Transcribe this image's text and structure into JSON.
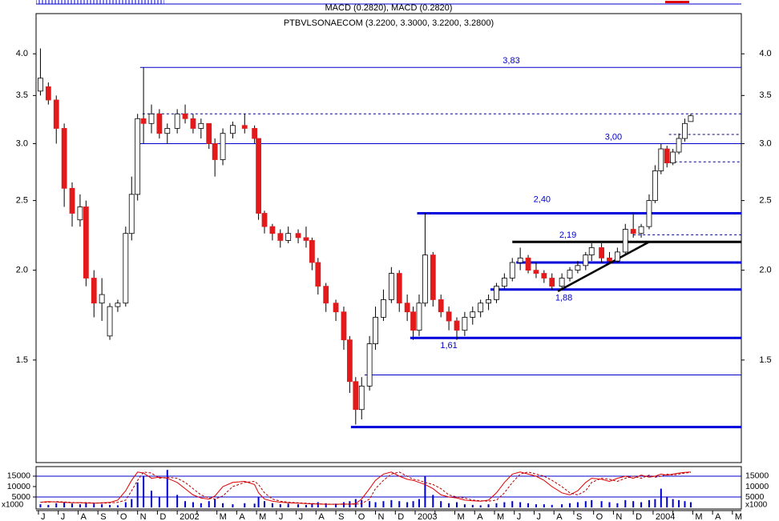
{
  "chart_data": {
    "type": "candlestick",
    "indicator_label": "MACD (0.2820), MACD (0.2820)",
    "title": "PTBVLSONAECOM (3.2200, 3.3000, 3.2200, 3.2800)",
    "log_scale": true,
    "up_color": "#ffffff",
    "down_color": "#e31a1c",
    "categories": [
      "J",
      "J",
      "A",
      "S",
      "O",
      "N",
      "D",
      "2002",
      null,
      "M",
      "A",
      "M",
      "J",
      "J",
      "A",
      "S",
      "O",
      "N",
      "D",
      "2003",
      null,
      "M",
      "A",
      "M",
      "J",
      "J",
      "A",
      "S",
      "O",
      "N",
      "D",
      "2004",
      null,
      "M",
      "A",
      "M"
    ],
    "xlim": [
      -0.12,
      35.45
    ],
    "x": [
      0.1,
      0.5,
      0.9,
      1.3,
      1.7,
      2.1,
      2.4,
      2.8,
      3.2,
      3.6,
      4.0,
      4.4,
      4.7,
      5.0,
      5.3,
      5.7,
      6.1,
      6.5,
      7.0,
      7.4,
      7.8,
      8.2,
      8.6,
      8.9,
      9.3,
      9.8,
      10.4,
      10.9,
      11.1,
      11.4,
      11.8,
      12.2,
      12.6,
      13.1,
      13.5,
      13.8,
      14.1,
      14.5,
      15.0,
      15.4,
      15.7,
      16.0,
      16.3,
      16.7,
      17.0,
      17.4,
      17.8,
      18.2,
      18.6,
      18.9,
      19.2,
      19.5,
      19.9,
      20.3,
      20.7,
      21.1,
      21.5,
      21.9,
      22.3,
      22.7,
      23.1,
      23.5,
      23.9,
      24.3,
      24.7,
      25.1,
      25.5,
      25.9,
      26.4,
      26.8,
      27.2,
      27.6,
      27.9,
      28.4,
      28.8,
      29.2,
      29.6,
      30.0,
      30.4,
      30.8,
      31.1,
      31.4,
      31.7,
      32.0,
      32.3,
      32.6,
      32.9
    ],
    "open": [
      3.55,
      3.6,
      3.45,
      3.15,
      2.6,
      2.35,
      2.45,
      1.95,
      1.8,
      1.62,
      1.78,
      1.8,
      2.25,
      2.55,
      3.25,
      3.2,
      3.3,
      3.1,
      3.15,
      3.3,
      3.25,
      3.15,
      3.2,
      3.0,
      2.85,
      3.1,
      3.18,
      3.15,
      3.05,
      2.4,
      2.3,
      2.25,
      2.2,
      2.25,
      2.22,
      2.2,
      2.05,
      1.9,
      1.8,
      1.75,
      1.6,
      1.4,
      1.28,
      1.38,
      1.58,
      1.72,
      1.82,
      1.98,
      1.8,
      1.75,
      1.65,
      1.8,
      2.1,
      1.82,
      1.75,
      1.7,
      1.65,
      1.72,
      1.75,
      1.8,
      1.82,
      1.9,
      1.95,
      2.05,
      2.08,
      2.0,
      1.98,
      1.95,
      1.9,
      1.95,
      2.0,
      2.03,
      2.1,
      2.15,
      2.08,
      2.06,
      2.12,
      2.28,
      2.25,
      2.3,
      2.5,
      2.75,
      2.95,
      2.82,
      2.92,
      3.05,
      3.22
    ],
    "high": [
      4.07,
      3.65,
      3.5,
      3.2,
      2.65,
      2.55,
      2.5,
      2.0,
      1.95,
      1.8,
      1.82,
      2.3,
      2.7,
      3.3,
      3.83,
      3.4,
      3.35,
      3.2,
      3.35,
      3.4,
      3.3,
      3.25,
      3.2,
      3.05,
      3.15,
      3.22,
      3.3,
      3.18,
      3.05,
      2.42,
      2.32,
      2.28,
      2.3,
      2.28,
      2.3,
      2.22,
      2.08,
      1.92,
      1.82,
      1.78,
      1.62,
      1.42,
      1.42,
      1.62,
      1.78,
      1.88,
      2.02,
      2.0,
      1.85,
      1.78,
      1.85,
      2.4,
      2.12,
      1.85,
      1.78,
      1.72,
      1.75,
      1.78,
      1.82,
      1.85,
      1.92,
      1.98,
      2.08,
      2.15,
      2.1,
      2.05,
      2.0,
      1.98,
      1.98,
      2.02,
      2.06,
      2.12,
      2.18,
      2.18,
      2.12,
      2.15,
      2.32,
      2.4,
      2.32,
      2.55,
      2.8,
      3.0,
      2.98,
      2.95,
      3.1,
      3.25,
      3.3
    ],
    "low": [
      3.5,
      3.4,
      3.0,
      2.45,
      2.3,
      2.3,
      1.9,
      1.72,
      1.7,
      1.6,
      1.75,
      1.78,
      2.2,
      2.5,
      3.0,
      3.1,
      3.05,
      3.0,
      3.1,
      3.2,
      3.1,
      3.05,
      2.95,
      2.7,
      2.8,
      3.05,
      3.1,
      3.0,
      2.35,
      2.25,
      2.2,
      2.15,
      2.18,
      2.18,
      2.15,
      2.0,
      1.85,
      1.75,
      1.7,
      1.55,
      1.35,
      1.22,
      1.24,
      1.36,
      1.55,
      1.7,
      1.8,
      1.75,
      1.7,
      1.6,
      1.62,
      1.78,
      1.78,
      1.72,
      1.65,
      1.6,
      1.62,
      1.68,
      1.72,
      1.76,
      1.8,
      1.88,
      1.93,
      2.0,
      1.98,
      1.95,
      1.92,
      1.88,
      1.88,
      1.93,
      1.98,
      2.0,
      2.06,
      2.05,
      2.04,
      2.05,
      2.1,
      2.22,
      2.22,
      2.28,
      2.48,
      2.72,
      2.78,
      2.8,
      2.9,
      3.02,
      3.22
    ],
    "close": [
      3.7,
      3.45,
      3.15,
      2.6,
      2.4,
      2.45,
      1.95,
      1.8,
      1.85,
      1.78,
      1.8,
      2.25,
      2.55,
      3.25,
      3.2,
      3.3,
      3.1,
      3.15,
      3.3,
      3.25,
      3.15,
      3.2,
      3.0,
      2.85,
      3.1,
      3.18,
      3.15,
      3.05,
      2.4,
      2.3,
      2.25,
      2.2,
      2.25,
      2.22,
      2.2,
      2.05,
      1.9,
      1.8,
      1.75,
      1.6,
      1.4,
      1.28,
      1.38,
      1.58,
      1.72,
      1.82,
      1.98,
      1.8,
      1.75,
      1.65,
      1.8,
      2.1,
      1.82,
      1.75,
      1.7,
      1.65,
      1.72,
      1.75,
      1.8,
      1.82,
      1.9,
      1.95,
      2.05,
      2.08,
      2.0,
      1.98,
      1.95,
      1.9,
      1.95,
      2.0,
      2.03,
      2.1,
      2.15,
      2.08,
      2.06,
      2.12,
      2.28,
      2.25,
      2.3,
      2.5,
      2.75,
      2.95,
      2.82,
      2.92,
      3.05,
      3.2,
      3.28
    ],
    "ylim": [
      1.08,
      4.55
    ],
    "yticks": [
      1.5,
      {
        "value": 2,
        "label": "2.0"
      },
      2.5,
      {
        "value": 3,
        "label": "3.0"
      },
      3.5,
      {
        "value": 4,
        "label": "4.0"
      }
    ],
    "levels": [
      {
        "value": 3.83,
        "label": "3,83",
        "start": 5.13,
        "style": "thin",
        "color": "#0000cc"
      },
      {
        "value": 3.3,
        "start": 5.25,
        "style": "dashed",
        "color": "#000080"
      },
      {
        "value": 3.0,
        "label": "3,00",
        "start": 5.13,
        "style": "thin",
        "color": "#0000cc"
      },
      {
        "value": 3.09,
        "start": 31.8,
        "style": "dashed",
        "color": "#000080"
      },
      {
        "value": 2.83,
        "start": 31.6,
        "style": "dashed",
        "color": "#000080"
      },
      {
        "value": 2.4,
        "label": "2,40",
        "start": 19.1,
        "style": "thick",
        "color": "#0000dd"
      },
      {
        "value": 2.24,
        "start": 30.0,
        "style": "dashed",
        "color": "#000080"
      },
      {
        "value": 2.19,
        "label": "2,19",
        "start": 23.9,
        "style": "thick",
        "color": "#000000"
      },
      {
        "value": 2.05,
        "start": 24.1,
        "style": "thick",
        "color": "#0000dd"
      },
      {
        "value": 1.88,
        "label": "1,88",
        "start": 22.8,
        "style": "thick",
        "color": "#0000dd"
      },
      {
        "value": 1.61,
        "label": "1,61",
        "start": 18.75,
        "style": "thick",
        "color": "#0000dd"
      },
      {
        "value": 1.43,
        "start": 16.45,
        "style": "thin",
        "color": "#0000cc"
      },
      {
        "value": 1.21,
        "start": 15.76,
        "style": "thick",
        "color": "#0000dd"
      }
    ],
    "trendline": {
      "x": [
        26.2,
        30.8
      ],
      "values": [
        1.87,
        2.19
      ],
      "color": "#000000"
    },
    "volume": {
      "unit_label": "x1000",
      "color": "#0000cc",
      "ylim": [
        -770,
        19600
      ],
      "yticks": [
        5000,
        10000,
        15000
      ],
      "lines": [
        5000,
        15000
      ],
      "values": [
        1500,
        1200,
        2000,
        2500,
        1800,
        1500,
        2200,
        1800,
        1500,
        1200,
        1000,
        2500,
        4000,
        12000,
        15000,
        8000,
        5000,
        18000,
        6000,
        3000,
        2500,
        2000,
        3000,
        4000,
        2000,
        1500,
        2000,
        1800,
        5000,
        3000,
        2000,
        1500,
        1800,
        1500,
        1200,
        2000,
        2500,
        2000,
        1800,
        2500,
        3000,
        4000,
        3500,
        3000,
        2500,
        3000,
        3500,
        3000,
        2500,
        3000,
        4000,
        15000,
        6000,
        3000,
        2000,
        2500,
        1500,
        1200,
        1000,
        1500,
        2000,
        2500,
        3000,
        2500,
        2000,
        1500,
        1500,
        1200,
        1500,
        2000,
        2500,
        3000,
        3500,
        3000,
        2500,
        2000,
        3500,
        3000,
        2500,
        3500,
        4000,
        9000,
        5000,
        4000,
        3500,
        3000,
        2500
      ],
      "series": [
        {
          "color": "#e00000",
          "values": [
            2500,
            2800,
            2600,
            2400,
            2200,
            2300,
            2100,
            2000,
            2200,
            2400,
            3500,
            8000,
            13000,
            17000,
            16500,
            14000,
            14500,
            14000,
            12000,
            9000,
            6000,
            4500,
            4000,
            5500,
            10000,
            12000,
            12500,
            11000,
            7000,
            4000,
            3000,
            2500,
            2200,
            2000,
            1800,
            1700,
            1600,
            1500,
            1500,
            1600,
            1500,
            1800,
            4000,
            9000,
            13000,
            16000,
            17000,
            15000,
            13500,
            13000,
            12000,
            11000,
            9000,
            6000,
            5000,
            4500,
            3500,
            3200,
            3000,
            3500,
            7000,
            12000,
            16000,
            17000,
            16000,
            15000,
            13000,
            10000,
            7000,
            6000,
            8000,
            12000,
            14000,
            13500,
            12500,
            14000,
            15000,
            14000,
            15500,
            14500,
            15000,
            16000,
            15500,
            16000,
            16500,
            16800,
            17000
          ]
        },
        {
          "color": "#b00000",
          "dashed": true,
          "values": [
            2500,
            2500,
            2800,
            2600,
            2400,
            2200,
            2300,
            2100,
            2000,
            2200,
            2400,
            3500,
            8000,
            13000,
            17000,
            16500,
            14000,
            14500,
            14000,
            12000,
            9000,
            6000,
            4500,
            4000,
            5500,
            10000,
            12000,
            12500,
            11000,
            7000,
            4000,
            3000,
            2500,
            2200,
            2000,
            1800,
            1700,
            1600,
            1500,
            1500,
            1600,
            1500,
            1800,
            4000,
            9000,
            13000,
            16000,
            17000,
            15000,
            13500,
            13000,
            12000,
            11000,
            9000,
            6000,
            5000,
            4500,
            3500,
            3200,
            3000,
            3500,
            7000,
            12000,
            16000,
            17000,
            16000,
            15000,
            13000,
            10000,
            7000,
            6000,
            8000,
            12000,
            14000,
            13500,
            12500,
            14000,
            15000,
            14000,
            15500,
            14500,
            15000,
            16000,
            15500,
            16000,
            16500,
            16800
          ]
        }
      ]
    }
  }
}
